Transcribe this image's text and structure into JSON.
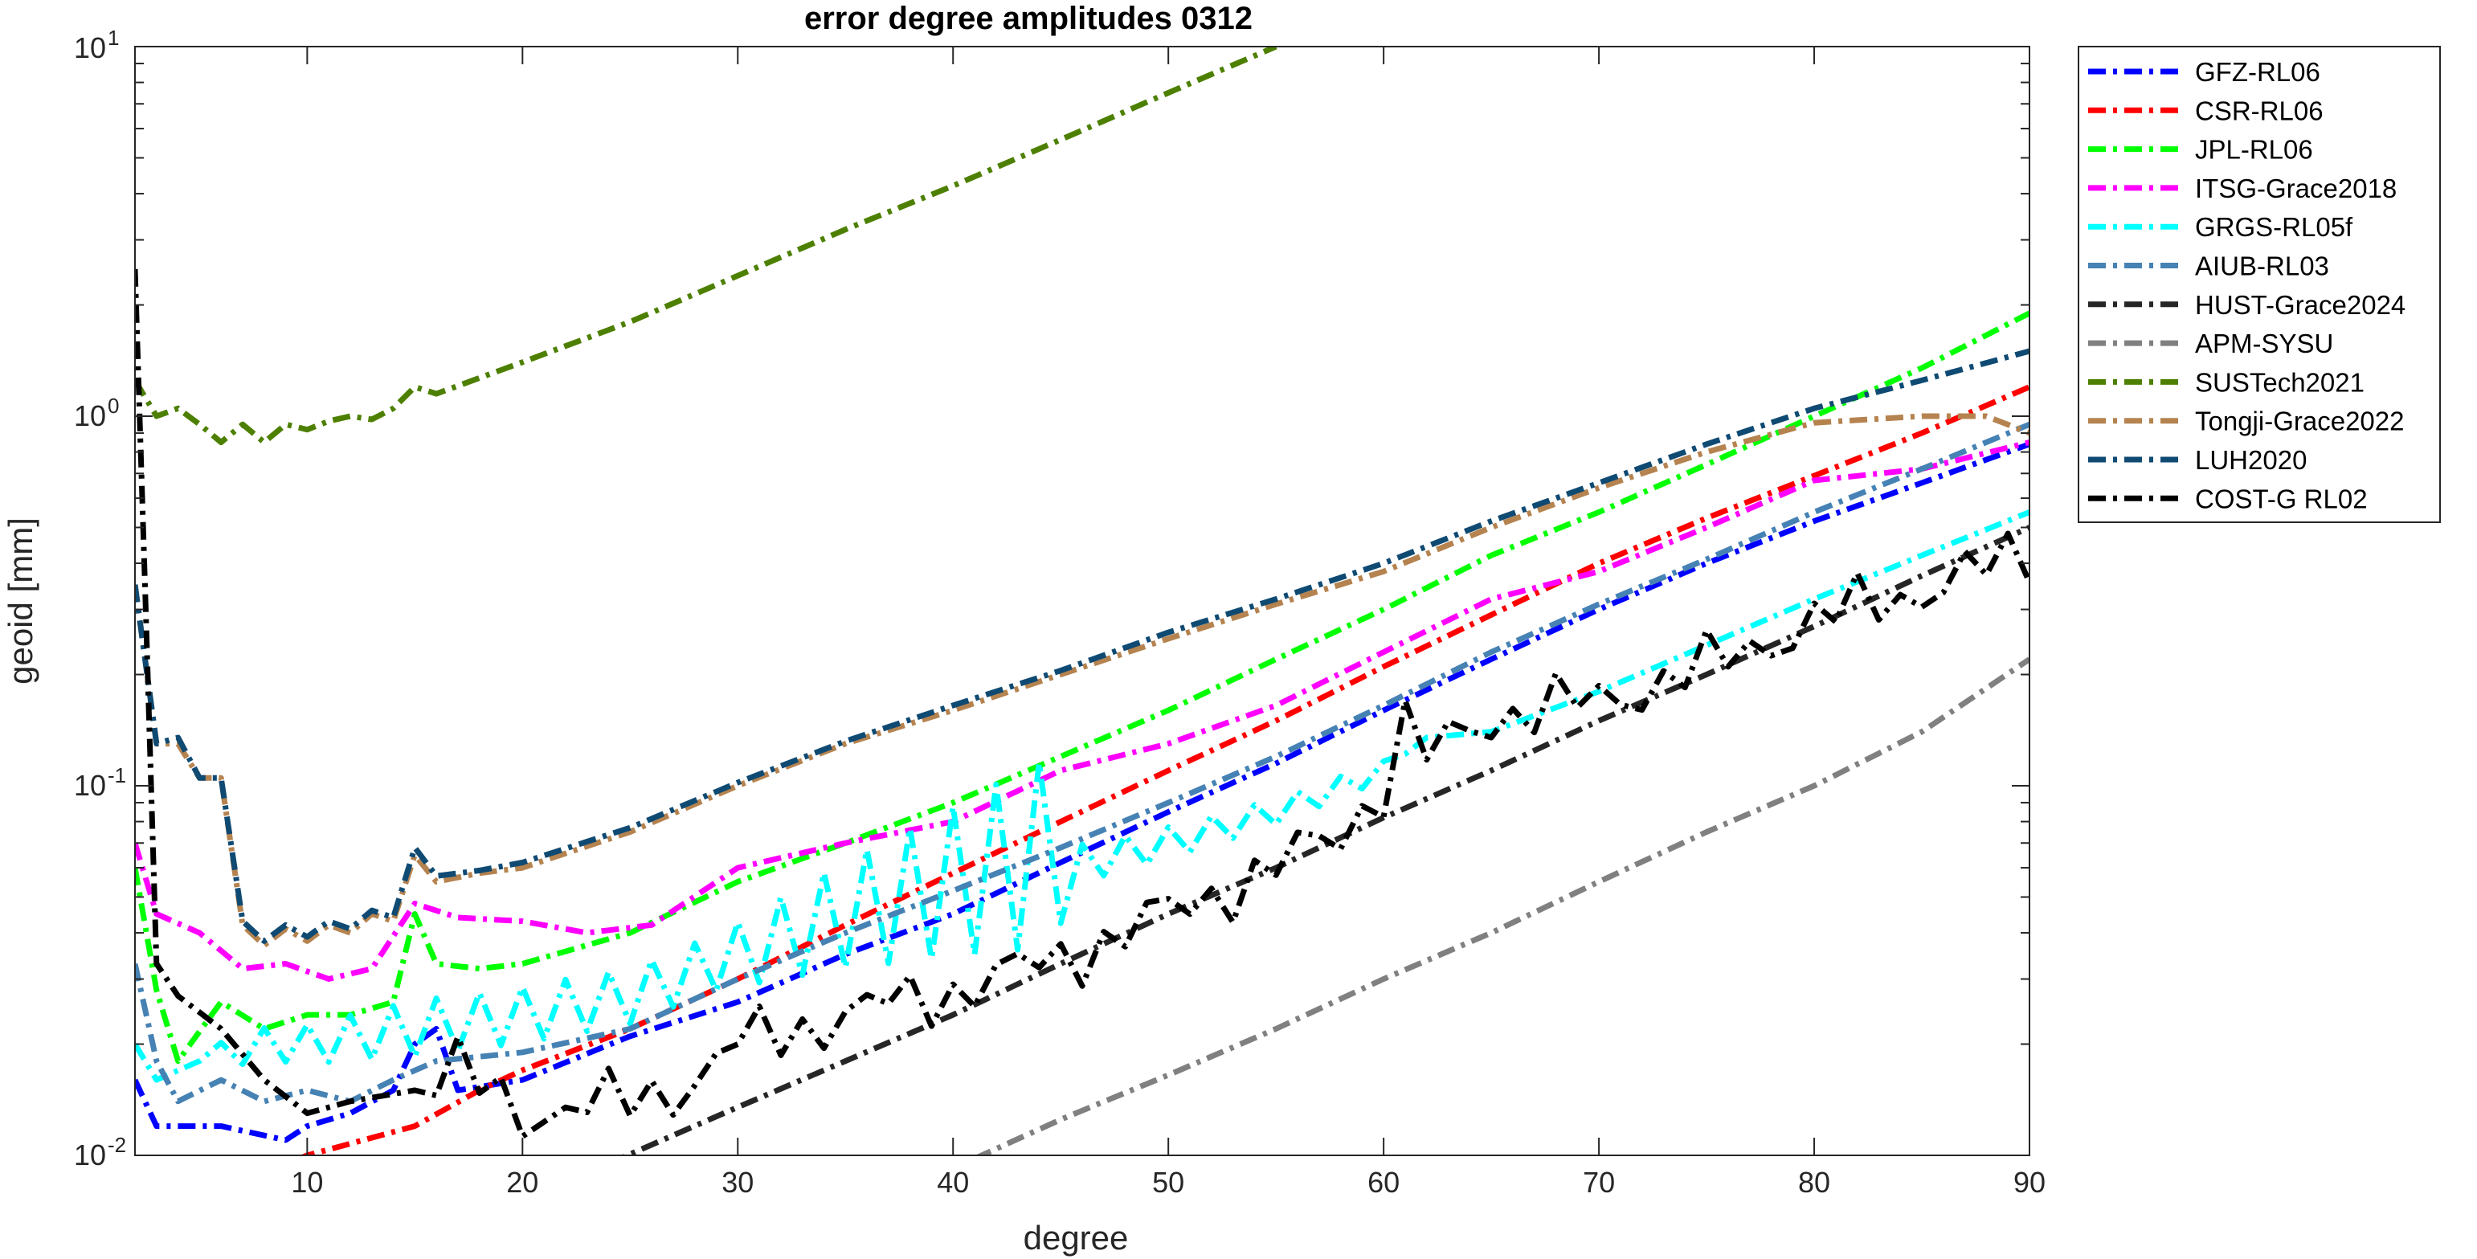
{
  "chart_data": {
    "type": "line",
    "title": "error degree amplitudes 0312",
    "xlabel": "degree",
    "ylabel": "geoid [mm]",
    "xlim": [
      2,
      90
    ],
    "ylim": [
      0.01,
      10
    ],
    "yscale": "log",
    "grid": false,
    "legend_position": "outside-right-top",
    "x_ticks": [
      10,
      20,
      30,
      40,
      50,
      60,
      70,
      80,
      90
    ],
    "y_ticks": [
      {
        "value": 0.01,
        "base": "10",
        "exp": "-2"
      },
      {
        "value": 0.1,
        "base": "10",
        "exp": "-1"
      },
      {
        "value": 1,
        "base": "10",
        "exp": "0"
      },
      {
        "value": 10,
        "base": "10",
        "exp": "1"
      }
    ],
    "series": [
      {
        "name": "GFZ-RL06",
        "color": "#0000ff",
        "kind": "loglinear",
        "anchors": [
          [
            2,
            0.016
          ],
          [
            3,
            0.012
          ],
          [
            6,
            0.012
          ],
          [
            9,
            0.011
          ],
          [
            10,
            0.012
          ],
          [
            12,
            0.013
          ],
          [
            14,
            0.015
          ],
          [
            15,
            0.02
          ],
          [
            16,
            0.022
          ],
          [
            17,
            0.015
          ],
          [
            20,
            0.016
          ],
          [
            25,
            0.021
          ],
          [
            30,
            0.026
          ],
          [
            35,
            0.035
          ],
          [
            40,
            0.045
          ],
          [
            45,
            0.062
          ],
          [
            50,
            0.085
          ],
          [
            55,
            0.115
          ],
          [
            60,
            0.16
          ],
          [
            65,
            0.22
          ],
          [
            70,
            0.3
          ],
          [
            75,
            0.4
          ],
          [
            80,
            0.52
          ],
          [
            85,
            0.66
          ],
          [
            90,
            0.84
          ]
        ]
      },
      {
        "name": "CSR-RL06",
        "color": "#ff0000",
        "kind": "loglinear",
        "anchors": [
          [
            8,
            0.009
          ],
          [
            10,
            0.01
          ],
          [
            15,
            0.012
          ],
          [
            18,
            0.015
          ],
          [
            20,
            0.017
          ],
          [
            25,
            0.022
          ],
          [
            30,
            0.03
          ],
          [
            35,
            0.042
          ],
          [
            40,
            0.058
          ],
          [
            45,
            0.08
          ],
          [
            50,
            0.11
          ],
          [
            55,
            0.15
          ],
          [
            60,
            0.21
          ],
          [
            65,
            0.29
          ],
          [
            70,
            0.4
          ],
          [
            75,
            0.53
          ],
          [
            80,
            0.69
          ],
          [
            85,
            0.9
          ],
          [
            90,
            1.2
          ]
        ]
      },
      {
        "name": "JPL-RL06",
        "color": "#00ff00",
        "kind": "loglinear",
        "anchors": [
          [
            2,
            0.06
          ],
          [
            3,
            0.028
          ],
          [
            4,
            0.018
          ],
          [
            6,
            0.026
          ],
          [
            8,
            0.022
          ],
          [
            10,
            0.024
          ],
          [
            12,
            0.024
          ],
          [
            14,
            0.026
          ],
          [
            15,
            0.045
          ],
          [
            16,
            0.033
          ],
          [
            18,
            0.032
          ],
          [
            20,
            0.033
          ],
          [
            25,
            0.04
          ],
          [
            30,
            0.055
          ],
          [
            35,
            0.07
          ],
          [
            40,
            0.09
          ],
          [
            45,
            0.12
          ],
          [
            50,
            0.16
          ],
          [
            55,
            0.22
          ],
          [
            60,
            0.3
          ],
          [
            65,
            0.42
          ],
          [
            70,
            0.55
          ],
          [
            75,
            0.74
          ],
          [
            80,
            1.0
          ],
          [
            85,
            1.35
          ],
          [
            90,
            1.9
          ]
        ]
      },
      {
        "name": "ITSG-Grace2018",
        "color": "#ff00ff",
        "kind": "loglinear",
        "anchors": [
          [
            2,
            0.07
          ],
          [
            3,
            0.045
          ],
          [
            5,
            0.04
          ],
          [
            7,
            0.032
          ],
          [
            9,
            0.033
          ],
          [
            11,
            0.03
          ],
          [
            13,
            0.032
          ],
          [
            15,
            0.048
          ],
          [
            17,
            0.044
          ],
          [
            20,
            0.043
          ],
          [
            23,
            0.04
          ],
          [
            26,
            0.042
          ],
          [
            30,
            0.06
          ],
          [
            35,
            0.07
          ],
          [
            40,
            0.08
          ],
          [
            45,
            0.11
          ],
          [
            50,
            0.13
          ],
          [
            55,
            0.165
          ],
          [
            60,
            0.23
          ],
          [
            65,
            0.32
          ],
          [
            70,
            0.38
          ],
          [
            75,
            0.5
          ],
          [
            80,
            0.67
          ],
          [
            85,
            0.72
          ],
          [
            90,
            0.85
          ]
        ]
      },
      {
        "name": "GRGS-RL05f",
        "color": "#00ffff",
        "kind": "zigzag",
        "anchors": [
          [
            2,
            0.02
          ],
          [
            3,
            0.016
          ],
          [
            5,
            0.018
          ],
          [
            8,
            0.02
          ],
          [
            10,
            0.02
          ],
          [
            15,
            0.022
          ],
          [
            20,
            0.024
          ],
          [
            25,
            0.027
          ],
          [
            30,
            0.035
          ],
          [
            35,
            0.045
          ],
          [
            40,
            0.055
          ],
          [
            44,
            0.065
          ],
          [
            45,
            0.06
          ],
          [
            50,
            0.07
          ],
          [
            55,
            0.085
          ],
          [
            60,
            0.11
          ],
          [
            62,
            0.135
          ],
          [
            65,
            0.14
          ],
          [
            70,
            0.18
          ],
          [
            75,
            0.24
          ],
          [
            80,
            0.32
          ],
          [
            85,
            0.42
          ],
          [
            90,
            0.55
          ]
        ],
        "zig": [
          [
            5,
            0.06
          ],
          [
            15,
            0.15
          ],
          [
            29,
            0.15
          ],
          [
            44,
            0.5
          ],
          [
            46,
            0.1
          ],
          [
            60,
            0.05
          ]
        ]
      },
      {
        "name": "AIUB-RL03",
        "color": "#4682b4",
        "kind": "loglinear",
        "anchors": [
          [
            2,
            0.033
          ],
          [
            3,
            0.018
          ],
          [
            4,
            0.014
          ],
          [
            6,
            0.016
          ],
          [
            8,
            0.014
          ],
          [
            10,
            0.015
          ],
          [
            12,
            0.014
          ],
          [
            14,
            0.016
          ],
          [
            16,
            0.018
          ],
          [
            20,
            0.019
          ],
          [
            25,
            0.022
          ],
          [
            30,
            0.03
          ],
          [
            35,
            0.04
          ],
          [
            40,
            0.052
          ],
          [
            45,
            0.068
          ],
          [
            50,
            0.09
          ],
          [
            55,
            0.12
          ],
          [
            60,
            0.165
          ],
          [
            65,
            0.23
          ],
          [
            70,
            0.31
          ],
          [
            75,
            0.41
          ],
          [
            80,
            0.55
          ],
          [
            85,
            0.72
          ],
          [
            90,
            0.95
          ]
        ]
      },
      {
        "name": "HUST-Grace2024",
        "color": "#262626",
        "kind": "loglinear",
        "anchors": [
          [
            24,
            0.0095
          ],
          [
            30,
            0.0135
          ],
          [
            35,
            0.018
          ],
          [
            40,
            0.024
          ],
          [
            45,
            0.033
          ],
          [
            50,
            0.045
          ],
          [
            55,
            0.06
          ],
          [
            60,
            0.082
          ],
          [
            65,
            0.11
          ],
          [
            70,
            0.15
          ],
          [
            75,
            0.2
          ],
          [
            80,
            0.27
          ],
          [
            85,
            0.37
          ],
          [
            90,
            0.5
          ]
        ]
      },
      {
        "name": "APM-SYSU",
        "color": "#808080",
        "kind": "loglinear",
        "anchors": [
          [
            41,
            0.0098
          ],
          [
            45,
            0.0125
          ],
          [
            50,
            0.0165
          ],
          [
            55,
            0.022
          ],
          [
            60,
            0.03
          ],
          [
            65,
            0.04
          ],
          [
            70,
            0.055
          ],
          [
            75,
            0.075
          ],
          [
            80,
            0.1
          ],
          [
            85,
            0.14
          ],
          [
            90,
            0.22
          ]
        ]
      },
      {
        "name": "SUSTech2021",
        "color": "#4d8000",
        "kind": "loglinear",
        "anchors": [
          [
            2,
            1.25
          ],
          [
            3,
            1.0
          ],
          [
            4,
            1.05
          ],
          [
            5,
            0.95
          ],
          [
            6,
            0.85
          ],
          [
            7,
            0.95
          ],
          [
            8,
            0.85
          ],
          [
            9,
            0.95
          ],
          [
            10,
            0.92
          ],
          [
            11,
            0.97
          ],
          [
            12,
            1.0
          ],
          [
            13,
            0.98
          ],
          [
            14,
            1.05
          ],
          [
            15,
            1.2
          ],
          [
            16,
            1.15
          ],
          [
            20,
            1.4
          ],
          [
            25,
            1.8
          ],
          [
            30,
            2.4
          ],
          [
            35,
            3.2
          ],
          [
            40,
            4.2
          ],
          [
            45,
            5.6
          ],
          [
            50,
            7.5
          ],
          [
            55,
            10.0
          ]
        ]
      },
      {
        "name": "Tongji-Grace2022",
        "color": "#b5834f",
        "kind": "loglinear",
        "anchors": [
          [
            2,
            0.35
          ],
          [
            3,
            0.13
          ],
          [
            4,
            0.13
          ],
          [
            5,
            0.105
          ],
          [
            6,
            0.105
          ],
          [
            7,
            0.042
          ],
          [
            8,
            0.037
          ],
          [
            9,
            0.041
          ],
          [
            10,
            0.038
          ],
          [
            11,
            0.042
          ],
          [
            12,
            0.04
          ],
          [
            13,
            0.045
          ],
          [
            14,
            0.043
          ],
          [
            15,
            0.065
          ],
          [
            16,
            0.055
          ],
          [
            18,
            0.058
          ],
          [
            20,
            0.06
          ],
          [
            25,
            0.075
          ],
          [
            30,
            0.1
          ],
          [
            35,
            0.13
          ],
          [
            40,
            0.16
          ],
          [
            45,
            0.2
          ],
          [
            50,
            0.25
          ],
          [
            55,
            0.31
          ],
          [
            60,
            0.38
          ],
          [
            65,
            0.5
          ],
          [
            70,
            0.64
          ],
          [
            75,
            0.8
          ],
          [
            80,
            0.96
          ],
          [
            85,
            1.0
          ],
          [
            88,
            1.0
          ],
          [
            90,
            0.9
          ]
        ]
      },
      {
        "name": "LUH2020",
        "color": "#0f4a73",
        "kind": "loglinear",
        "anchors": [
          [
            2,
            0.35
          ],
          [
            3,
            0.13
          ],
          [
            4,
            0.135
          ],
          [
            5,
            0.105
          ],
          [
            6,
            0.105
          ],
          [
            7,
            0.043
          ],
          [
            8,
            0.038
          ],
          [
            9,
            0.042
          ],
          [
            10,
            0.039
          ],
          [
            11,
            0.043
          ],
          [
            12,
            0.041
          ],
          [
            13,
            0.046
          ],
          [
            14,
            0.044
          ],
          [
            15,
            0.068
          ],
          [
            16,
            0.057
          ],
          [
            18,
            0.059
          ],
          [
            20,
            0.062
          ],
          [
            25,
            0.077
          ],
          [
            30,
            0.102
          ],
          [
            35,
            0.132
          ],
          [
            40,
            0.165
          ],
          [
            45,
            0.205
          ],
          [
            50,
            0.26
          ],
          [
            55,
            0.32
          ],
          [
            60,
            0.4
          ],
          [
            65,
            0.52
          ],
          [
            70,
            0.66
          ],
          [
            75,
            0.84
          ],
          [
            80,
            1.05
          ],
          [
            85,
            1.25
          ],
          [
            90,
            1.5
          ]
        ]
      },
      {
        "name": "COST-G RL02",
        "color": "#000000",
        "kind": "noisy",
        "anchors": [
          [
            2,
            2.5
          ],
          [
            2.5,
            0.3
          ],
          [
            3,
            0.033
          ],
          [
            4,
            0.027
          ],
          [
            6,
            0.022
          ],
          [
            8,
            0.016
          ],
          [
            10,
            0.013
          ],
          [
            12,
            0.014
          ],
          [
            15,
            0.015
          ],
          [
            17,
            0.017
          ],
          [
            20,
            0.013
          ],
          [
            25,
            0.014
          ],
          [
            28,
            0.016
          ],
          [
            30,
            0.02
          ],
          [
            35,
            0.024
          ],
          [
            40,
            0.028
          ],
          [
            45,
            0.034
          ],
          [
            50,
            0.045
          ],
          [
            55,
            0.06
          ],
          [
            58,
            0.075
          ],
          [
            60,
            0.1
          ],
          [
            61,
            0.145
          ],
          [
            62,
            0.12
          ],
          [
            65,
            0.155
          ],
          [
            70,
            0.17
          ],
          [
            75,
            0.21
          ],
          [
            80,
            0.28
          ],
          [
            85,
            0.34
          ],
          [
            90,
            0.42
          ]
        ]
      }
    ]
  }
}
